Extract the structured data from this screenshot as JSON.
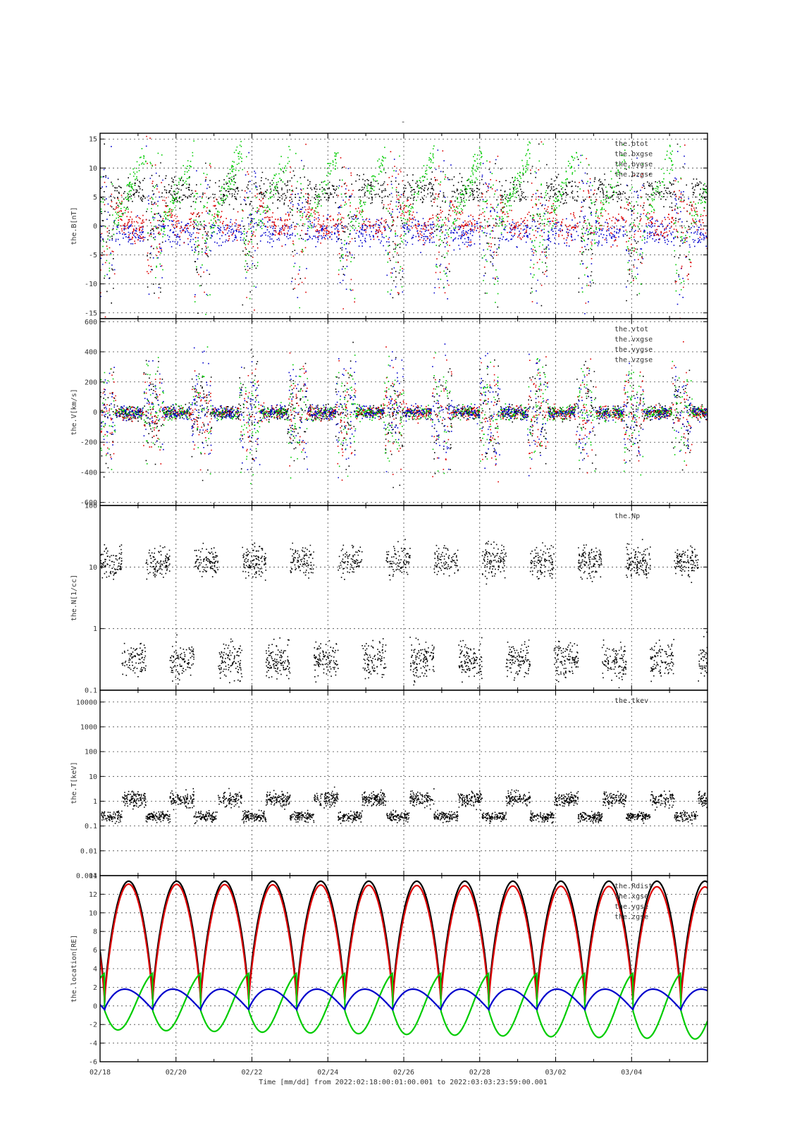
{
  "page": {
    "top_mark": "-",
    "xlabel": "Time [mm/dd]  from 2022:02:18:00:01:00.001  to  2022:03:03:23:59:00.001",
    "xticks": [
      "02/18",
      "02/20",
      "02/22",
      "02/24",
      "02/26",
      "02/28",
      "03/02",
      "03/04"
    ]
  },
  "colors": {
    "black": "#000000",
    "red": "#dd0000",
    "green": "#00cc00",
    "blue": "#0000cc"
  },
  "chart_data": [
    {
      "type": "scatter",
      "ylabel": "the.B[nT]",
      "ylim": [
        -16,
        16
      ],
      "scale": "linear",
      "yticks": [
        15,
        10,
        5,
        0,
        -5,
        -10,
        -15
      ],
      "grid": true,
      "legend_position": "top-right",
      "series": [
        {
          "name": "the.btot",
          "color": "#000000"
        },
        {
          "name": "the.bxgse",
          "color": "#dd0000"
        },
        {
          "name": "the.bygse",
          "color": "#00cc00"
        },
        {
          "name": "the.bzgse",
          "color": "#0000cc"
        }
      ]
    },
    {
      "type": "scatter",
      "ylabel": "the.V[km/s]",
      "ylim": [
        -620,
        620
      ],
      "scale": "linear",
      "yticks": [
        600,
        400,
        200,
        0,
        -200,
        -400,
        -600
      ],
      "grid": true,
      "legend_position": "top-right",
      "series": [
        {
          "name": "the.vtot",
          "color": "#000000"
        },
        {
          "name": "the.vxgse",
          "color": "#dd0000"
        },
        {
          "name": "the.vygse",
          "color": "#00cc00"
        },
        {
          "name": "the.vzgse",
          "color": "#0000cc"
        }
      ]
    },
    {
      "type": "scatter",
      "ylabel": "the.N[1/cc]",
      "ylim": [
        0.1,
        100
      ],
      "scale": "log",
      "yticks": [
        100,
        10,
        1,
        0.1
      ],
      "grid": true,
      "legend_position": "top-right",
      "series": [
        {
          "name": "the.Np",
          "color": "#000000"
        }
      ]
    },
    {
      "type": "scatter",
      "ylabel": "the.T[keV]",
      "ylim": [
        0.001,
        30000
      ],
      "scale": "log",
      "yticks": [
        10000,
        1000,
        100,
        10,
        1,
        0.1,
        0.01,
        0.001
      ],
      "grid": true,
      "legend_position": "top-right",
      "series": [
        {
          "name": "the.tkev",
          "color": "#000000"
        }
      ]
    },
    {
      "type": "line",
      "ylabel": "the.location[RE]",
      "ylim": [
        -6,
        14
      ],
      "scale": "linear",
      "yticks": [
        14,
        12,
        10,
        8,
        6,
        4,
        2,
        0,
        -2,
        -4,
        -6
      ],
      "grid": true,
      "legend_position": "top-right",
      "series": [
        {
          "name": "the.Rdist",
          "color": "#000000"
        },
        {
          "name": "the.xgse",
          "color": "#dd0000"
        },
        {
          "name": "the.ygse",
          "color": "#00cc00"
        },
        {
          "name": "the.zgse",
          "color": "#0000cc"
        }
      ]
    }
  ]
}
